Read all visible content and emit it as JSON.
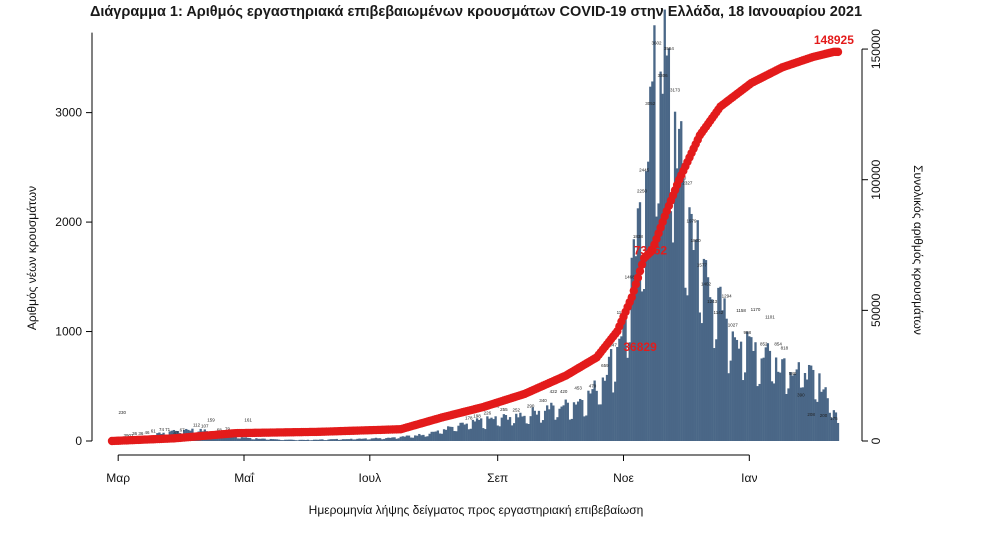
{
  "chart_data": {
    "type": "bar",
    "title": "Διάγραμμα 1: Αριθμός εργαστηριακά επιβεβαιωμένων κρουσμάτων COVID-19 στην Ελλάδα, 18 Ιανουαρίου 2021",
    "xlabel": "Ημερομηνία λήψης δείγματος προς εργαστηριακή επιβεβαίωση",
    "ylabel": "Αριθμός νέων κρουσμάτων",
    "y2label": "Συνολικός αριθμός κρουσμάτων",
    "x_ticks": [
      "Μαρ",
      "Μαΐ",
      "Ιουλ",
      "Σεπ",
      "Νοε",
      "Ιαν"
    ],
    "ylim": [
      0,
      3700
    ],
    "yticks": [
      0,
      1000,
      2000,
      3000
    ],
    "y2lim": [
      0,
      155000
    ],
    "y2ticks": [
      0,
      50000,
      100000,
      150000
    ],
    "grid": false,
    "colors": {
      "bars": "#4a6787",
      "cumulative": "#e31b1b"
    },
    "series": [
      {
        "name": "",
        "kind": "bar",
        "anchors": [
          [
            0,
            2
          ],
          [
            10,
            25
          ],
          [
            20,
            55
          ],
          [
            28,
            90
          ],
          [
            35,
            110
          ],
          [
            45,
            95
          ],
          [
            55,
            55
          ],
          [
            65,
            30
          ],
          [
            75,
            18
          ],
          [
            85,
            12
          ],
          [
            95,
            10
          ],
          [
            105,
            15
          ],
          [
            115,
            20
          ],
          [
            125,
            25
          ],
          [
            135,
            32
          ],
          [
            142,
            42
          ],
          [
            150,
            60
          ],
          [
            157,
            90
          ],
          [
            163,
            120
          ],
          [
            170,
            150
          ],
          [
            178,
            185
          ],
          [
            186,
            210
          ],
          [
            194,
            230
          ],
          [
            202,
            260
          ],
          [
            210,
            300
          ],
          [
            218,
            330
          ],
          [
            225,
            360
          ],
          [
            232,
            440
          ],
          [
            238,
            600
          ],
          [
            243,
            800
          ],
          [
            248,
            1100
          ],
          [
            252,
            1500
          ],
          [
            256,
            2000
          ],
          [
            259,
            2700
          ],
          [
            262,
            3200
          ],
          [
            265,
            3600
          ],
          [
            268,
            3500
          ],
          [
            271,
            3200
          ],
          [
            274,
            2800
          ],
          [
            277,
            2450
          ],
          [
            280,
            2100
          ],
          [
            283,
            1900
          ],
          [
            287,
            1650
          ],
          [
            291,
            1450
          ],
          [
            295,
            1250
          ],
          [
            299,
            1100
          ],
          [
            303,
            1000
          ],
          [
            307,
            900
          ],
          [
            311,
            950
          ],
          [
            315,
            800
          ],
          [
            319,
            900
          ],
          [
            323,
            720
          ],
          [
            327,
            780
          ],
          [
            331,
            650
          ],
          [
            335,
            720
          ],
          [
            339,
            600
          ],
          [
            343,
            550
          ],
          [
            347,
            450
          ],
          [
            350,
            300
          ],
          [
            352,
            160
          ]
        ]
      },
      {
        "name": "",
        "kind": "cumulative",
        "anchors": [
          [
            0,
            0
          ],
          [
            30,
            1000
          ],
          [
            60,
            3000
          ],
          [
            100,
            3500
          ],
          [
            140,
            4500
          ],
          [
            160,
            9000
          ],
          [
            180,
            13000
          ],
          [
            200,
            18000
          ],
          [
            220,
            25000
          ],
          [
            235,
            32000
          ],
          [
            245,
            42000
          ],
          [
            252,
            55000
          ],
          [
            258,
            70000
          ],
          [
            262,
            73000
          ],
          [
            268,
            86000
          ],
          [
            275,
            100000
          ],
          [
            285,
            117000
          ],
          [
            295,
            128000
          ],
          [
            310,
            137000
          ],
          [
            325,
            143000
          ],
          [
            340,
            147000
          ],
          [
            350,
            148925
          ]
        ]
      }
    ],
    "bar_labels": [
      {
        "d": 5,
        "v": "230"
      },
      {
        "d": 8,
        "v": "3902"
      },
      {
        "d": 11,
        "v": "36"
      },
      {
        "d": 14,
        "v": "36"
      },
      {
        "d": 17,
        "v": "46"
      },
      {
        "d": 20,
        "v": "61"
      },
      {
        "d": 24,
        "v": "74"
      },
      {
        "d": 27,
        "v": "71"
      },
      {
        "d": 31,
        "v": "43"
      },
      {
        "d": 34,
        "v": "67"
      },
      {
        "d": 38,
        "v": "23"
      },
      {
        "d": 41,
        "v": "112"
      },
      {
        "d": 45,
        "v": "107"
      },
      {
        "d": 48,
        "v": "159"
      },
      {
        "d": 52,
        "v": "68"
      },
      {
        "d": 56,
        "v": "79"
      },
      {
        "d": 60,
        "v": "48"
      },
      {
        "d": 66,
        "v": "161"
      },
      {
        "d": 72,
        "v": "62"
      },
      {
        "d": 173,
        "v": "178"
      },
      {
        "d": 177,
        "v": "198"
      },
      {
        "d": 182,
        "v": "226"
      },
      {
        "d": 186,
        "v": "286"
      },
      {
        "d": 190,
        "v": "255"
      },
      {
        "d": 196,
        "v": "252"
      },
      {
        "d": 203,
        "v": "290"
      },
      {
        "d": 209,
        "v": "340"
      },
      {
        "d": 214,
        "v": "422"
      },
      {
        "d": 219,
        "v": "420"
      },
      {
        "d": 226,
        "v": "453"
      },
      {
        "d": 233,
        "v": "470"
      },
      {
        "d": 239,
        "v": "659"
      },
      {
        "d": 243,
        "v": "847"
      },
      {
        "d": 247,
        "v": "1142"
      },
      {
        "d": 251,
        "v": "1468"
      },
      {
        "d": 255,
        "v": "1838"
      },
      {
        "d": 257,
        "v": "2250"
      },
      {
        "d": 258,
        "v": "2445"
      },
      {
        "d": 261,
        "v": "3052"
      },
      {
        "d": 264,
        "v": "3602"
      },
      {
        "d": 267,
        "v": "3306"
      },
      {
        "d": 270,
        "v": "3554"
      },
      {
        "d": 273,
        "v": "3173"
      },
      {
        "d": 276,
        "v": "2370"
      },
      {
        "d": 279,
        "v": "2327"
      },
      {
        "d": 281,
        "v": "1979"
      },
      {
        "d": 283,
        "v": "1800"
      },
      {
        "d": 286,
        "v": "1577"
      },
      {
        "d": 288,
        "v": "1402"
      },
      {
        "d": 291,
        "v": "1243"
      },
      {
        "d": 294,
        "v": "1142"
      },
      {
        "d": 298,
        "v": "1294"
      },
      {
        "d": 301,
        "v": "1027"
      },
      {
        "d": 305,
        "v": "1158"
      },
      {
        "d": 308,
        "v": "958"
      },
      {
        "d": 312,
        "v": "1170"
      },
      {
        "d": 316,
        "v": "852"
      },
      {
        "d": 319,
        "v": "1101"
      },
      {
        "d": 323,
        "v": "854"
      },
      {
        "d": 326,
        "v": "818"
      },
      {
        "d": 330,
        "v": "586"
      },
      {
        "d": 334,
        "v": "390"
      },
      {
        "d": 339,
        "v": "208"
      },
      {
        "d": 345,
        "v": "200"
      },
      {
        "d": 350,
        "v": "175"
      }
    ],
    "annotations": [
      {
        "label": "36829",
        "d": 257,
        "y2": 36829
      },
      {
        "label": "73662",
        "d": 262,
        "y2": 73662
      },
      {
        "label": "148925",
        "d": 350,
        "y2": 148925
      }
    ]
  }
}
